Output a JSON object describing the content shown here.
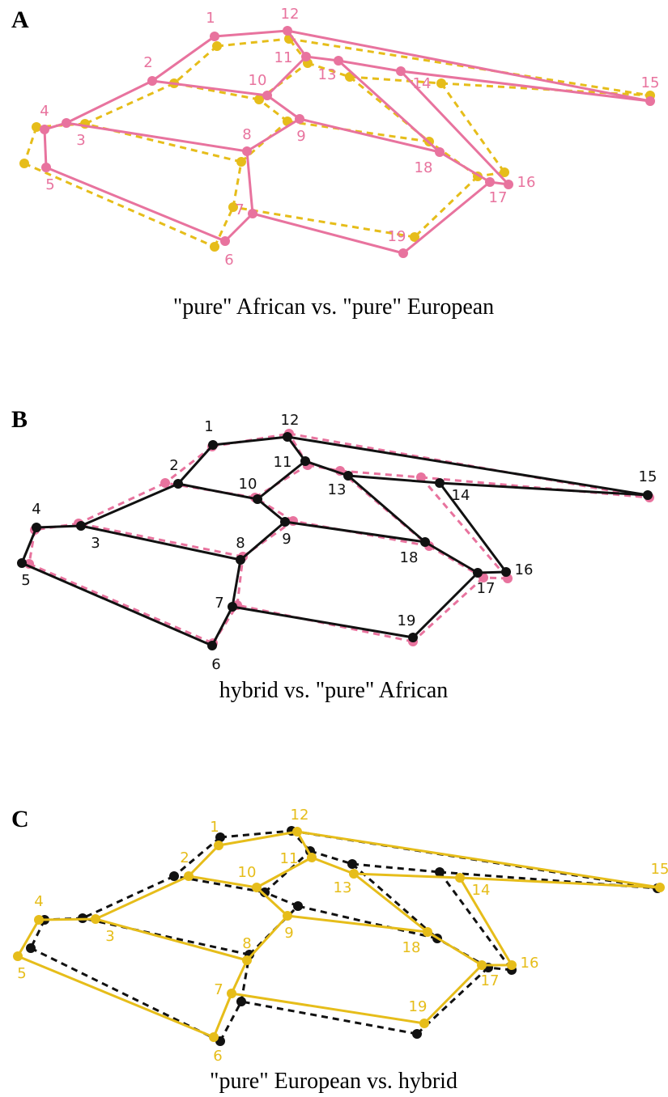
{
  "panels": [
    {
      "letter": "A",
      "caption": "\"pure\" African vs. \"pure\" European"
    },
    {
      "letter": "B",
      "caption": "hybrid vs. \"pure\" African"
    },
    {
      "letter": "C",
      "caption": "\"pure\" European vs. hybrid"
    }
  ],
  "landmarks": [
    "1",
    "2",
    "3",
    "4",
    "5",
    "6",
    "7",
    "8",
    "9",
    "10",
    "11",
    "12",
    "13",
    "14",
    "15",
    "16",
    "17",
    "18",
    "19"
  ]
}
